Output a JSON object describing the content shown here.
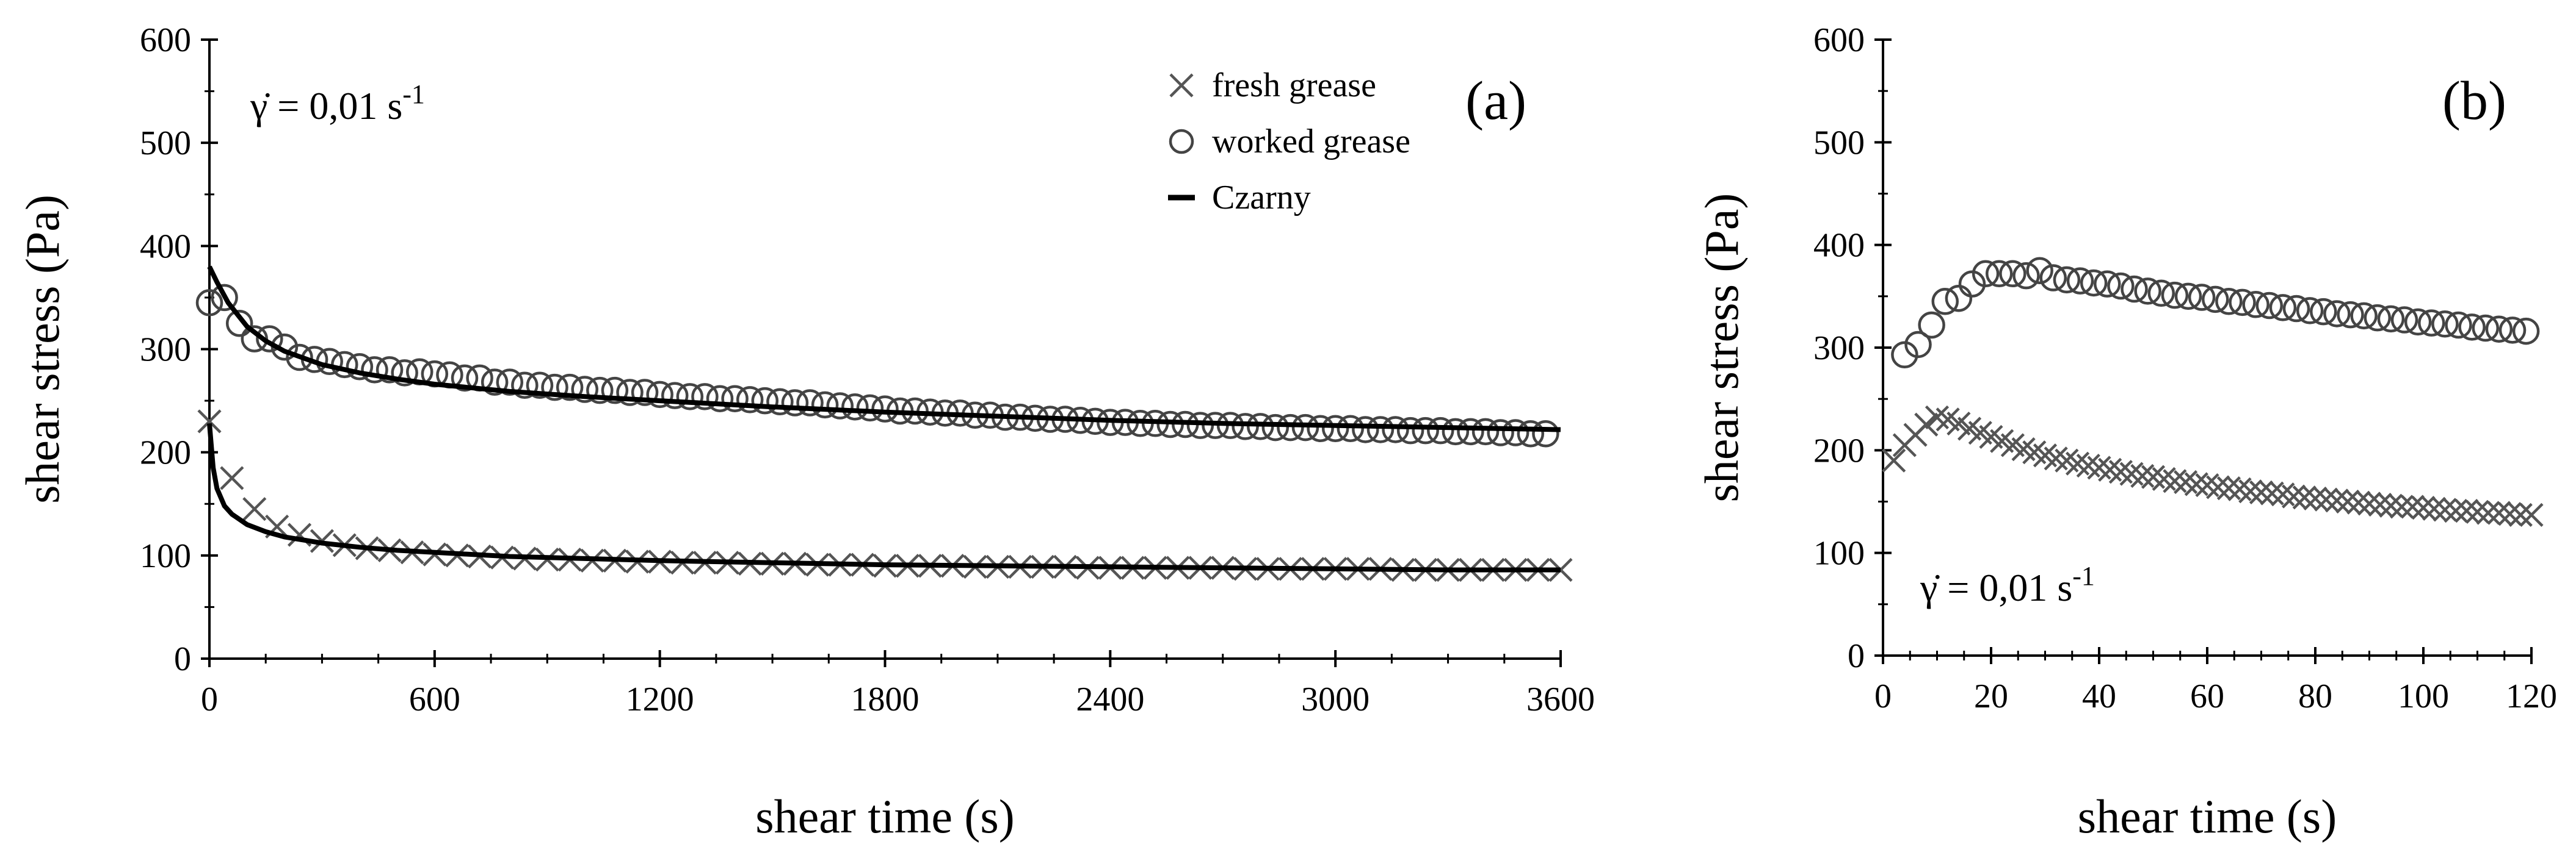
{
  "chart_data": [
    {
      "panel": "(a)",
      "type": "scatter",
      "xlabel": "shear time (s)",
      "ylabel": "shear stress (Pa)",
      "xlim": [
        0,
        3600
      ],
      "ylim": [
        0,
        600
      ],
      "xticks": [
        0,
        600,
        1200,
        1800,
        2400,
        3000,
        3600
      ],
      "yticks": [
        0,
        100,
        200,
        300,
        400,
        500,
        600
      ],
      "annotation": {
        "prefix": "γ̇ = 0,01  s",
        "exponent": "-1"
      },
      "legend": {
        "position": "top-right",
        "entries": [
          "fresh grease",
          "worked grease",
          "Czarny"
        ]
      },
      "grid": false,
      "series": [
        {
          "name": "fresh grease",
          "marker": "x",
          "x": [
            0,
            60,
            120,
            180,
            240,
            300,
            360,
            420,
            480,
            540,
            600,
            660,
            720,
            780,
            840,
            900,
            960,
            1020,
            1080,
            1140,
            1200,
            1260,
            1320,
            1380,
            1440,
            1500,
            1560,
            1620,
            1680,
            1740,
            1800,
            1860,
            1920,
            1980,
            2040,
            2100,
            2160,
            2220,
            2280,
            2340,
            2400,
            2460,
            2520,
            2580,
            2640,
            2700,
            2760,
            2820,
            2880,
            2940,
            3000,
            3060,
            3120,
            3180,
            3240,
            3300,
            3360,
            3420,
            3480,
            3540,
            3600
          ],
          "y": [
            230,
            175,
            145,
            128,
            120,
            114,
            110,
            107,
            105,
            103,
            101,
            100,
            99,
            98,
            97,
            96,
            96,
            95,
            95,
            94,
            94,
            93,
            93,
            93,
            92,
            92,
            92,
            91,
            91,
            91,
            90,
            90,
            90,
            90,
            89,
            89,
            89,
            89,
            89,
            88,
            88,
            88,
            88,
            88,
            88,
            88,
            87,
            87,
            87,
            87,
            87,
            87,
            87,
            86,
            86,
            86,
            86,
            86,
            86,
            86,
            86
          ]
        },
        {
          "name": "worked grease",
          "marker": "circle",
          "x": [
            0,
            40,
            80,
            120,
            160,
            200,
            240,
            280,
            320,
            360,
            400,
            440,
            480,
            520,
            560,
            600,
            640,
            680,
            720,
            760,
            800,
            840,
            880,
            920,
            960,
            1000,
            1040,
            1080,
            1120,
            1160,
            1200,
            1240,
            1280,
            1320,
            1360,
            1400,
            1440,
            1480,
            1520,
            1560,
            1600,
            1640,
            1680,
            1720,
            1760,
            1800,
            1840,
            1880,
            1920,
            1960,
            2000,
            2040,
            2080,
            2120,
            2160,
            2200,
            2240,
            2280,
            2320,
            2360,
            2400,
            2440,
            2480,
            2520,
            2560,
            2600,
            2640,
            2680,
            2720,
            2760,
            2800,
            2840,
            2880,
            2920,
            2960,
            3000,
            3040,
            3080,
            3120,
            3160,
            3200,
            3240,
            3280,
            3320,
            3360,
            3400,
            3440,
            3480,
            3520,
            3560
          ],
          "y": [
            345,
            350,
            325,
            310,
            310,
            302,
            292,
            290,
            288,
            285,
            283,
            280,
            280,
            277,
            278,
            276,
            275,
            272,
            272,
            268,
            268,
            265,
            265,
            263,
            263,
            261,
            260,
            260,
            258,
            258,
            256,
            255,
            254,
            254,
            252,
            252,
            251,
            250,
            249,
            248,
            248,
            246,
            245,
            244,
            243,
            242,
            240,
            240,
            239,
            238,
            238,
            236,
            236,
            234,
            234,
            233,
            232,
            232,
            231,
            230,
            229,
            229,
            228,
            228,
            227,
            227,
            226,
            226,
            226,
            225,
            225,
            224,
            224,
            224,
            223,
            223,
            223,
            222,
            222,
            222,
            221,
            221,
            221,
            220,
            220,
            220,
            219,
            219,
            218,
            218
          ]
        },
        {
          "name": "Czarny",
          "marker": "line",
          "curves": [
            {
              "x": [
                0,
                20,
                50,
                100,
                150,
                200,
                300,
                400,
                500,
                600,
                800,
                1000,
                1200,
                1500,
                1800,
                2100,
                2400,
                2700,
                3000,
                3300,
                3600
              ],
              "y": [
                380,
                365,
                345,
                322,
                308,
                298,
                285,
                277,
                271,
                266,
                259,
                254,
                250,
                244,
                239,
                235,
                231,
                228,
                226,
                224,
                222
              ]
            },
            {
              "x": [
                0,
                10,
                20,
                40,
                60,
                100,
                150,
                200,
                300,
                400,
                500,
                600,
                800,
                1000,
                1200,
                1500,
                1800,
                2100,
                2400,
                2700,
                3000,
                3300,
                3600
              ],
              "y": [
                228,
                185,
                165,
                148,
                140,
                130,
                123,
                118,
                112,
                108,
                105,
                103,
                99,
                97,
                95,
                93,
                91,
                90,
                89,
                88,
                87,
                86,
                86
              ]
            }
          ]
        }
      ]
    },
    {
      "panel": "(b)",
      "type": "scatter",
      "xlabel": "shear time (s)",
      "ylabel": "shear stress (Pa)",
      "xlim": [
        0,
        120
      ],
      "ylim": [
        0,
        600
      ],
      "xticks": [
        0,
        20,
        40,
        60,
        80,
        100,
        120
      ],
      "yticks": [
        0,
        100,
        200,
        300,
        400,
        500,
        600
      ],
      "annotation": {
        "prefix": "γ̇ = 0,01  s",
        "exponent": "-1"
      },
      "grid": false,
      "series": [
        {
          "name": "fresh grease",
          "marker": "x",
          "x": [
            2,
            4,
            6,
            8,
            10,
            12,
            14,
            16,
            18,
            20,
            22,
            24,
            26,
            28,
            30,
            32,
            34,
            36,
            38,
            40,
            42,
            44,
            46,
            48,
            50,
            52,
            54,
            56,
            58,
            60,
            62,
            64,
            66,
            68,
            70,
            72,
            74,
            76,
            78,
            80,
            82,
            84,
            86,
            88,
            90,
            92,
            94,
            96,
            98,
            100,
            102,
            104,
            106,
            108,
            110,
            112,
            114,
            116,
            118,
            120
          ],
          "y": [
            190,
            205,
            215,
            225,
            232,
            230,
            226,
            221,
            217,
            213,
            209,
            205,
            201,
            198,
            195,
            192,
            190,
            187,
            185,
            183,
            181,
            179,
            177,
            175,
            174,
            172,
            170,
            169,
            167,
            166,
            164,
            163,
            162,
            160,
            159,
            158,
            157,
            155,
            154,
            153,
            152,
            151,
            150,
            149,
            148,
            147,
            146,
            145,
            145,
            144,
            143,
            142,
            141,
            141,
            140,
            139,
            139,
            138,
            137,
            137
          ]
        },
        {
          "name": "worked grease",
          "marker": "circle",
          "x": [
            4,
            6.5,
            9,
            11.5,
            14,
            16.5,
            19,
            21.5,
            24,
            26.5,
            29,
            31.5,
            34,
            36.5,
            39,
            41.5,
            44,
            46.5,
            49,
            51.5,
            54,
            56.5,
            59,
            61.5,
            64,
            66.5,
            69,
            71.5,
            74,
            76.5,
            79,
            81.5,
            84,
            86.5,
            89,
            91.5,
            94,
            96.5,
            99,
            101.5,
            104,
            106.5,
            109,
            111.5,
            114,
            116.5,
            119
          ],
          "y": [
            293,
            303,
            322,
            345,
            348,
            362,
            372,
            372,
            372,
            370,
            375,
            368,
            366,
            365,
            363,
            362,
            360,
            357,
            355,
            353,
            351,
            350,
            349,
            347,
            345,
            344,
            342,
            341,
            339,
            338,
            336,
            335,
            333,
            332,
            331,
            329,
            328,
            327,
            325,
            324,
            323,
            322,
            320,
            319,
            318,
            317,
            316
          ]
        }
      ]
    }
  ]
}
